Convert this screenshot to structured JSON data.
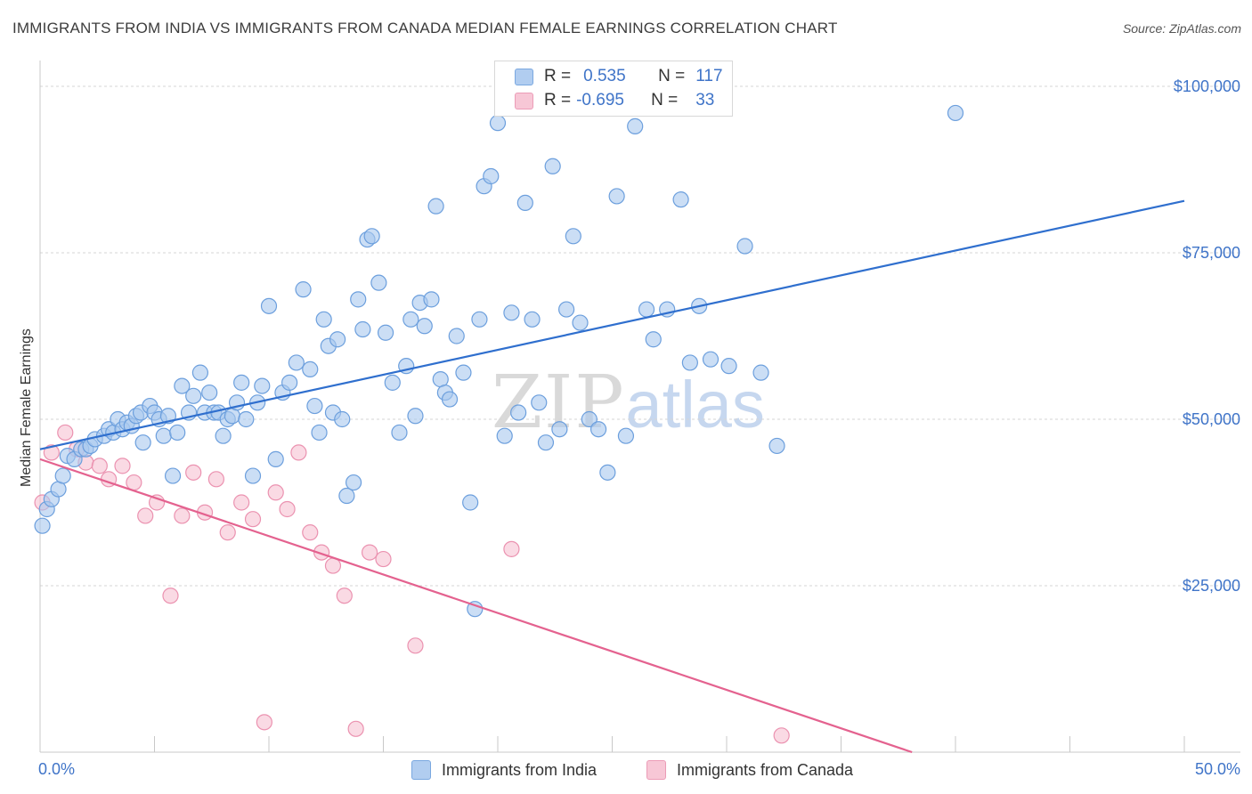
{
  "title": "IMMIGRANTS FROM INDIA VS IMMIGRANTS FROM CANADA MEDIAN FEMALE EARNINGS CORRELATION CHART",
  "source": "Source: ZipAtlas.com",
  "watermark": {
    "zip": "ZIP",
    "atlas": "atlas"
  },
  "legend": {
    "india": {
      "r_label": "R =",
      "r_value": "0.535",
      "n_label": "N =",
      "n_value": "117"
    },
    "canada": {
      "r_label": "R =",
      "r_value": "-0.695",
      "n_label": "N =",
      "n_value": "33"
    }
  },
  "colors": {
    "india_fill": "#a9c8ef",
    "india_stroke": "#6c9fdd",
    "india_line": "#2f6fce",
    "canada_fill": "#f7c1d2",
    "canada_stroke": "#eb92b0",
    "canada_line": "#e4628f",
    "axis_text": "#3f74c8",
    "grid": "#d5d5d5"
  },
  "chart_data": {
    "type": "scatter",
    "title": "IMMIGRANTS FROM INDIA VS IMMIGRANTS FROM CANADA MEDIAN FEMALE EARNINGS CORRELATION CHART",
    "xlabel": "",
    "ylabel": "Median Female Earnings",
    "xlim": [
      0,
      50
    ],
    "ylim": [
      0,
      100000
    ],
    "x_ticks": [
      "0.0%",
      "50.0%"
    ],
    "y_ticks": [
      "$25,000",
      "$50,000",
      "$75,000",
      "$100,000"
    ],
    "y_tick_values": [
      25000,
      50000,
      75000,
      100000
    ],
    "grid": true,
    "legend_position": "bottom",
    "series": [
      {
        "name": "Immigrants from India",
        "trend": {
          "x": [
            0,
            50
          ],
          "y": [
            45500,
            82800
          ]
        },
        "points": [
          [
            0.1,
            34000
          ],
          [
            0.3,
            36500
          ],
          [
            0.5,
            38000
          ],
          [
            0.8,
            39500
          ],
          [
            1.0,
            41500
          ],
          [
            1.2,
            44500
          ],
          [
            1.5,
            44000
          ],
          [
            1.8,
            45500
          ],
          [
            2.0,
            45500
          ],
          [
            2.2,
            46000
          ],
          [
            2.4,
            47000
          ],
          [
            2.8,
            47500
          ],
          [
            3.0,
            48500
          ],
          [
            3.2,
            48000
          ],
          [
            3.4,
            50000
          ],
          [
            3.6,
            48500
          ],
          [
            3.8,
            49500
          ],
          [
            4.0,
            49000
          ],
          [
            4.2,
            50500
          ],
          [
            4.4,
            51000
          ],
          [
            4.5,
            46500
          ],
          [
            4.8,
            52000
          ],
          [
            5.0,
            51000
          ],
          [
            5.2,
            50000
          ],
          [
            5.4,
            47500
          ],
          [
            5.6,
            50500
          ],
          [
            5.8,
            41500
          ],
          [
            6.0,
            48000
          ],
          [
            6.2,
            55000
          ],
          [
            6.5,
            51000
          ],
          [
            6.7,
            53500
          ],
          [
            7.0,
            57000
          ],
          [
            7.2,
            51000
          ],
          [
            7.4,
            54000
          ],
          [
            7.6,
            51000
          ],
          [
            7.8,
            51000
          ],
          [
            8.0,
            47500
          ],
          [
            8.2,
            50000
          ],
          [
            8.4,
            50500
          ],
          [
            8.6,
            52500
          ],
          [
            8.8,
            55500
          ],
          [
            9.0,
            50000
          ],
          [
            9.3,
            41500
          ],
          [
            9.5,
            52500
          ],
          [
            9.7,
            55000
          ],
          [
            10.0,
            67000
          ],
          [
            10.3,
            44000
          ],
          [
            10.6,
            54000
          ],
          [
            10.9,
            55500
          ],
          [
            11.2,
            58500
          ],
          [
            11.5,
            69500
          ],
          [
            11.8,
            57500
          ],
          [
            12.0,
            52000
          ],
          [
            12.2,
            48000
          ],
          [
            12.4,
            65000
          ],
          [
            12.6,
            61000
          ],
          [
            12.8,
            51000
          ],
          [
            13.0,
            62000
          ],
          [
            13.2,
            50000
          ],
          [
            13.4,
            38500
          ],
          [
            13.7,
            40500
          ],
          [
            13.9,
            68000
          ],
          [
            14.1,
            63500
          ],
          [
            14.3,
            77000
          ],
          [
            14.5,
            77500
          ],
          [
            14.8,
            70500
          ],
          [
            15.1,
            63000
          ],
          [
            15.4,
            55500
          ],
          [
            15.7,
            48000
          ],
          [
            16.0,
            58000
          ],
          [
            16.2,
            65000
          ],
          [
            16.4,
            50500
          ],
          [
            16.6,
            67500
          ],
          [
            16.8,
            64000
          ],
          [
            17.1,
            68000
          ],
          [
            17.3,
            82000
          ],
          [
            17.5,
            56000
          ],
          [
            17.7,
            54000
          ],
          [
            17.9,
            53000
          ],
          [
            18.2,
            62500
          ],
          [
            18.5,
            57000
          ],
          [
            18.8,
            37500
          ],
          [
            19.0,
            21500
          ],
          [
            19.2,
            65000
          ],
          [
            19.4,
            85000
          ],
          [
            19.7,
            86500
          ],
          [
            20.0,
            94500
          ],
          [
            20.3,
            47500
          ],
          [
            20.6,
            66000
          ],
          [
            20.9,
            51000
          ],
          [
            21.2,
            82500
          ],
          [
            21.5,
            65000
          ],
          [
            21.8,
            52500
          ],
          [
            22.1,
            46500
          ],
          [
            22.4,
            88000
          ],
          [
            22.7,
            48500
          ],
          [
            23.0,
            66500
          ],
          [
            23.3,
            77500
          ],
          [
            23.6,
            64500
          ],
          [
            24.0,
            50000
          ],
          [
            24.4,
            48500
          ],
          [
            24.8,
            42000
          ],
          [
            25.2,
            83500
          ],
          [
            25.6,
            47500
          ],
          [
            26.0,
            94000
          ],
          [
            26.5,
            66500
          ],
          [
            26.8,
            62000
          ],
          [
            27.4,
            66500
          ],
          [
            28.0,
            83000
          ],
          [
            28.4,
            58500
          ],
          [
            28.8,
            67000
          ],
          [
            29.3,
            59000
          ],
          [
            30.1,
            58000
          ],
          [
            30.8,
            76000
          ],
          [
            31.5,
            57000
          ],
          [
            32.2,
            46000
          ],
          [
            40.0,
            96000
          ]
        ]
      },
      {
        "name": "Immigrants from Canada",
        "trend": {
          "x": [
            0,
            38.1
          ],
          "y": [
            44000,
            0
          ]
        },
        "points": [
          [
            0.1,
            37500
          ],
          [
            0.5,
            45000
          ],
          [
            1.1,
            48000
          ],
          [
            1.6,
            45500
          ],
          [
            2.0,
            43500
          ],
          [
            2.6,
            43000
          ],
          [
            3.0,
            41000
          ],
          [
            3.6,
            43000
          ],
          [
            4.1,
            40500
          ],
          [
            4.6,
            35500
          ],
          [
            5.1,
            37500
          ],
          [
            5.7,
            23500
          ],
          [
            6.2,
            35500
          ],
          [
            6.7,
            42000
          ],
          [
            7.2,
            36000
          ],
          [
            7.7,
            41000
          ],
          [
            8.2,
            33000
          ],
          [
            8.8,
            37500
          ],
          [
            9.3,
            35000
          ],
          [
            9.8,
            4500
          ],
          [
            10.3,
            39000
          ],
          [
            10.8,
            36500
          ],
          [
            11.3,
            45000
          ],
          [
            11.8,
            33000
          ],
          [
            12.3,
            30000
          ],
          [
            12.8,
            28000
          ],
          [
            13.3,
            23500
          ],
          [
            13.8,
            3500
          ],
          [
            14.4,
            30000
          ],
          [
            15.0,
            29000
          ],
          [
            16.4,
            16000
          ],
          [
            20.6,
            30500
          ],
          [
            32.4,
            2500
          ]
        ]
      }
    ]
  }
}
